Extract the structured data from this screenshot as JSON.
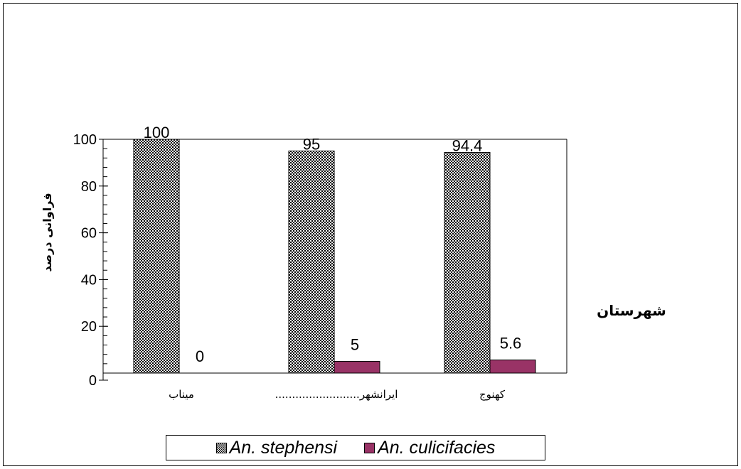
{
  "chart_data": {
    "type": "bar",
    "categories": [
      "میناب",
      "ایرانشهر.........................",
      "کهنوج"
    ],
    "series": [
      {
        "name": "An.  stephensi",
        "values": [
          100,
          95,
          94.4
        ],
        "data_labels": [
          "100",
          "95",
          "94.4"
        ],
        "color": "#000000",
        "pattern": "checkerboard"
      },
      {
        "name": "An.  culicifacies",
        "values": [
          0,
          5,
          5.6
        ],
        "data_labels": [
          "0",
          "5",
          "5.6"
        ],
        "color": "#993366",
        "pattern": "solid"
      }
    ],
    "title": "",
    "xlabel": "شهرستان",
    "ylabel": "فراوانی درصد",
    "ylim": [
      0,
      100
    ],
    "yticks": [
      "0",
      "20",
      "40",
      "60",
      "80",
      "100"
    ],
    "grid": false,
    "legend_position": "bottom"
  }
}
